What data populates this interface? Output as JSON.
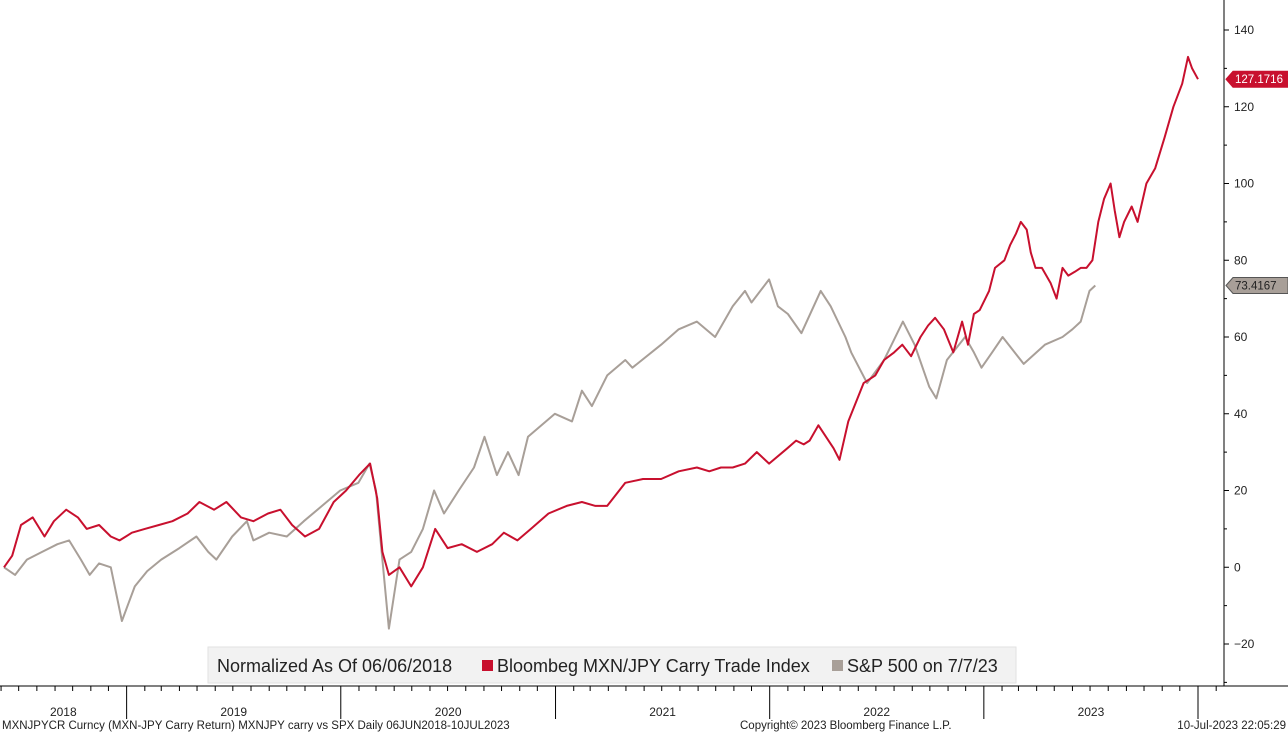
{
  "chart_data": {
    "type": "line",
    "legend": {
      "note": "Normalized As Of 06/06/2018",
      "placement": "bottom-center"
    },
    "x_tick_labels": [
      "2018",
      "2019",
      "2020",
      "2021",
      "2022",
      "2023"
    ],
    "y_tick_labels": [
      "140",
      "120",
      "100",
      "80",
      "60",
      "40",
      "20",
      "0",
      "−20"
    ],
    "ylim": [
      -30,
      148
    ],
    "y_axis_position": "right",
    "grid": false,
    "series": [
      {
        "name": "Bloombeg MXN/JPY Carry Trade Index",
        "color": "#c8102e",
        "last_value_label": "127.1716",
        "points": [
          [
            "2018-06-06",
            0
          ],
          [
            "2018-06-20",
            3
          ],
          [
            "2018-07-05",
            11
          ],
          [
            "2018-07-25",
            13
          ],
          [
            "2018-08-14",
            8
          ],
          [
            "2018-08-30",
            12
          ],
          [
            "2018-09-20",
            15
          ],
          [
            "2018-10-10",
            13
          ],
          [
            "2018-10-25",
            10
          ],
          [
            "2018-11-15",
            11
          ],
          [
            "2018-12-05",
            8
          ],
          [
            "2018-12-20",
            7
          ],
          [
            "2019-01-10",
            9
          ],
          [
            "2019-02-01",
            10
          ],
          [
            "2019-02-25",
            11
          ],
          [
            "2019-03-20",
            12
          ],
          [
            "2019-04-15",
            14
          ],
          [
            "2019-05-05",
            17
          ],
          [
            "2019-05-30",
            15
          ],
          [
            "2019-06-20",
            17
          ],
          [
            "2019-07-15",
            13
          ],
          [
            "2019-08-05",
            12
          ],
          [
            "2019-08-30",
            14
          ],
          [
            "2019-09-20",
            15
          ],
          [
            "2019-10-10",
            11
          ],
          [
            "2019-11-01",
            8
          ],
          [
            "2019-11-25",
            10
          ],
          [
            "2019-12-20",
            17
          ],
          [
            "2020-01-10",
            20
          ],
          [
            "2020-02-01",
            24
          ],
          [
            "2020-02-20",
            27
          ],
          [
            "2020-03-03",
            18
          ],
          [
            "2020-03-12",
            4
          ],
          [
            "2020-03-23",
            -2
          ],
          [
            "2020-04-10",
            0
          ],
          [
            "2020-04-30",
            -5
          ],
          [
            "2020-05-20",
            0
          ],
          [
            "2020-06-10",
            10
          ],
          [
            "2020-07-01",
            5
          ],
          [
            "2020-07-25",
            6
          ],
          [
            "2020-08-20",
            4
          ],
          [
            "2020-09-15",
            6
          ],
          [
            "2020-10-05",
            9
          ],
          [
            "2020-10-28",
            7
          ],
          [
            "2020-11-20",
            10
          ],
          [
            "2020-12-20",
            14
          ],
          [
            "2021-01-20",
            16
          ],
          [
            "2021-02-15",
            17
          ],
          [
            "2021-03-10",
            16
          ],
          [
            "2021-03-30",
            16
          ],
          [
            "2021-04-30",
            22
          ],
          [
            "2021-05-30",
            23
          ],
          [
            "2021-06-30",
            23
          ],
          [
            "2021-07-30",
            25
          ],
          [
            "2021-08-30",
            26
          ],
          [
            "2021-09-20",
            25
          ],
          [
            "2021-10-10",
            26
          ],
          [
            "2021-10-30",
            26
          ],
          [
            "2021-11-20",
            27
          ],
          [
            "2021-12-10",
            30
          ],
          [
            "2021-12-31",
            27
          ],
          [
            "2022-01-31",
            31
          ],
          [
            "2022-02-15",
            33
          ],
          [
            "2022-02-28",
            32
          ],
          [
            "2022-03-10",
            33
          ],
          [
            "2022-03-25",
            37
          ],
          [
            "2022-04-20",
            31
          ],
          [
            "2022-04-30",
            28
          ],
          [
            "2022-05-15",
            38
          ],
          [
            "2022-06-10",
            48
          ],
          [
            "2022-06-30",
            50
          ],
          [
            "2022-07-15",
            54
          ],
          [
            "2022-08-01",
            56
          ],
          [
            "2022-08-15",
            58
          ],
          [
            "2022-08-30",
            55
          ],
          [
            "2022-09-15",
            60
          ],
          [
            "2022-09-28",
            63
          ],
          [
            "2022-10-10",
            65
          ],
          [
            "2022-10-25",
            62
          ],
          [
            "2022-11-10",
            56
          ],
          [
            "2022-11-25",
            64
          ],
          [
            "2022-12-05",
            58
          ],
          [
            "2022-12-15",
            66
          ],
          [
            "2022-12-25",
            67
          ],
          [
            "2023-01-10",
            72
          ],
          [
            "2023-01-20",
            78
          ],
          [
            "2023-02-05",
            80
          ],
          [
            "2023-02-15",
            84
          ],
          [
            "2023-02-25",
            87
          ],
          [
            "2023-03-05",
            90
          ],
          [
            "2023-03-15",
            88
          ],
          [
            "2023-03-22",
            82
          ],
          [
            "2023-03-30",
            78
          ],
          [
            "2023-04-10",
            78
          ],
          [
            "2023-04-25",
            74
          ],
          [
            "2023-05-05",
            70
          ],
          [
            "2023-05-15",
            78
          ],
          [
            "2023-05-25",
            76
          ],
          [
            "2023-06-05",
            77
          ],
          [
            "2023-06-15",
            78
          ],
          [
            "2023-06-25",
            78
          ],
          [
            "2023-07-05",
            80
          ],
          [
            "2023-07-15",
            90
          ],
          [
            "2023-07-25",
            96
          ],
          [
            "2023-08-05",
            100
          ],
          [
            "2023-08-12",
            93
          ],
          [
            "2023-08-20",
            86
          ],
          [
            "2023-08-28",
            90
          ],
          [
            "2023-09-10",
            94
          ],
          [
            "2023-09-20",
            90
          ],
          [
            "2023-10-05",
            100
          ],
          [
            "2023-10-20",
            104
          ],
          [
            "2023-11-05",
            112
          ],
          [
            "2023-11-20",
            120
          ],
          [
            "2023-12-05",
            126
          ],
          [
            "2023-12-15",
            133
          ],
          [
            "2023-12-22",
            130
          ],
          [
            "2024-01-01",
            127.1716
          ]
        ]
      },
      {
        "name": "S&P 500 on 7/7/23",
        "color": "#a89f98",
        "last_value_label": "73.4167",
        "points": [
          [
            "2018-06-06",
            0
          ],
          [
            "2018-06-25",
            -2
          ],
          [
            "2018-07-15",
            2
          ],
          [
            "2018-08-10",
            4
          ],
          [
            "2018-09-05",
            6
          ],
          [
            "2018-09-25",
            7
          ],
          [
            "2018-10-15",
            2
          ],
          [
            "2018-10-30",
            -2
          ],
          [
            "2018-11-15",
            1
          ],
          [
            "2018-12-05",
            0
          ],
          [
            "2018-12-24",
            -14
          ],
          [
            "2019-01-15",
            -5
          ],
          [
            "2019-02-05",
            -1
          ],
          [
            "2019-03-01",
            2
          ],
          [
            "2019-04-01",
            5
          ],
          [
            "2019-04-30",
            8
          ],
          [
            "2019-05-20",
            4
          ],
          [
            "2019-06-03",
            2
          ],
          [
            "2019-06-30",
            8
          ],
          [
            "2019-07-25",
            12
          ],
          [
            "2019-08-05",
            7
          ],
          [
            "2019-09-01",
            9
          ],
          [
            "2019-10-01",
            8
          ],
          [
            "2019-10-30",
            12
          ],
          [
            "2019-11-30",
            16
          ],
          [
            "2019-12-31",
            20
          ],
          [
            "2020-01-31",
            22
          ],
          [
            "2020-02-19",
            27
          ],
          [
            "2020-03-01",
            20
          ],
          [
            "2020-03-10",
            5
          ],
          [
            "2020-03-23",
            -16
          ],
          [
            "2020-04-10",
            2
          ],
          [
            "2020-04-30",
            4
          ],
          [
            "2020-05-20",
            10
          ],
          [
            "2020-06-08",
            20
          ],
          [
            "2020-06-25",
            14
          ],
          [
            "2020-07-20",
            20
          ],
          [
            "2020-08-15",
            26
          ],
          [
            "2020-09-02",
            34
          ],
          [
            "2020-09-23",
            24
          ],
          [
            "2020-10-12",
            30
          ],
          [
            "2020-10-30",
            24
          ],
          [
            "2020-11-15",
            34
          ],
          [
            "2020-12-31",
            40
          ],
          [
            "2021-01-29",
            38
          ],
          [
            "2021-02-15",
            46
          ],
          [
            "2021-03-04",
            42
          ],
          [
            "2021-03-30",
            50
          ],
          [
            "2021-04-30",
            54
          ],
          [
            "2021-05-12",
            52
          ],
          [
            "2021-06-30",
            58
          ],
          [
            "2021-07-30",
            62
          ],
          [
            "2021-08-30",
            64
          ],
          [
            "2021-09-30",
            60
          ],
          [
            "2021-10-30",
            68
          ],
          [
            "2021-11-20",
            72
          ],
          [
            "2021-12-01",
            69
          ],
          [
            "2021-12-31",
            75
          ],
          [
            "2022-01-15",
            68
          ],
          [
            "2022-02-01",
            66
          ],
          [
            "2022-02-24",
            61
          ],
          [
            "2022-03-29",
            72
          ],
          [
            "2022-04-15",
            68
          ],
          [
            "2022-05-10",
            60
          ],
          [
            "2022-05-20",
            56
          ],
          [
            "2022-06-16",
            48
          ],
          [
            "2022-07-15",
            54
          ],
          [
            "2022-08-16",
            64
          ],
          [
            "2022-09-05",
            58
          ],
          [
            "2022-09-30",
            47
          ],
          [
            "2022-10-12",
            44
          ],
          [
            "2022-10-30",
            54
          ],
          [
            "2022-11-30",
            60
          ],
          [
            "2022-12-15",
            56
          ],
          [
            "2022-12-28",
            52
          ],
          [
            "2023-01-15",
            56
          ],
          [
            "2023-02-02",
            60
          ],
          [
            "2023-03-10",
            53
          ],
          [
            "2023-04-15",
            58
          ],
          [
            "2023-05-15",
            60
          ],
          [
            "2023-06-01",
            62
          ],
          [
            "2023-06-15",
            64
          ],
          [
            "2023-06-30",
            72
          ],
          [
            "2023-07-10",
            73.4167
          ]
        ]
      }
    ]
  },
  "footer": {
    "left": "MXNJPYCR Curncy (MXN-JPY Carry Return) MXNJPY carry vs SPX  Daily 06JUN2018-10JUL2023",
    "center": "Copyright© 2023 Bloomberg Finance L.P.",
    "right": "10-Jul-2023 22:05:29"
  }
}
